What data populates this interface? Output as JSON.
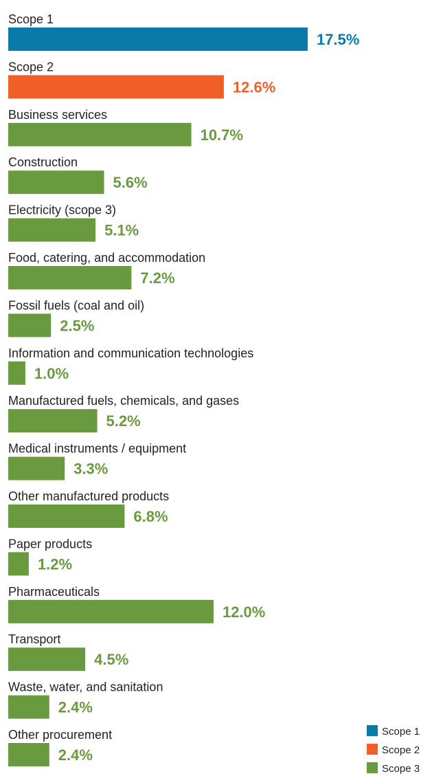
{
  "chart_data": {
    "type": "bar",
    "orientation": "horizontal",
    "categories": [
      "Scope 1",
      "Scope 2",
      "Business services",
      "Construction",
      "Electricity (scope 3)",
      "Food, catering, and accommodation",
      "Fossil fuels (coal and oil)",
      "Information and communication technologies",
      "Manufactured fuels, chemicals, and gases",
      "Medical instruments / equipment",
      "Other manufactured products",
      "Paper products",
      "Pharmaceuticals",
      "Transport",
      "Waste, water, and sanitation",
      "Other procurement"
    ],
    "values": [
      17.5,
      12.6,
      10.7,
      5.6,
      5.1,
      7.2,
      2.5,
      1.0,
      5.2,
      3.3,
      6.8,
      1.2,
      12.0,
      4.5,
      2.4,
      2.4
    ],
    "value_labels": [
      "17.5%",
      "12.6%",
      "10.7%",
      "5.6%",
      "5.1%",
      "7.2%",
      "2.5%",
      "1.0%",
      "5.2%",
      "3.3%",
      "6.8%",
      "1.2%",
      "12.0%",
      "4.5%",
      "2.4%",
      "2.4%"
    ],
    "groups": [
      "Scope 1",
      "Scope 2",
      "Scope 3",
      "Scope 3",
      "Scope 3",
      "Scope 3",
      "Scope 3",
      "Scope 3",
      "Scope 3",
      "Scope 3",
      "Scope 3",
      "Scope 3",
      "Scope 3",
      "Scope 3",
      "Scope 3",
      "Scope 3"
    ],
    "legend": [
      {
        "name": "Scope 1",
        "color": "#0a7ba8"
      },
      {
        "name": "Scope 2",
        "color": "#f05f28"
      },
      {
        "name": "Scope 3",
        "color": "#6a9a3f"
      }
    ],
    "value_label_colors": {
      "Scope 1": "#0a7ba8",
      "Scope 2": "#f05f28",
      "Scope 3": "#6a9a3f"
    },
    "legend_position": "bottom-right",
    "xlim": [
      0,
      17.5
    ],
    "grid": false
  }
}
